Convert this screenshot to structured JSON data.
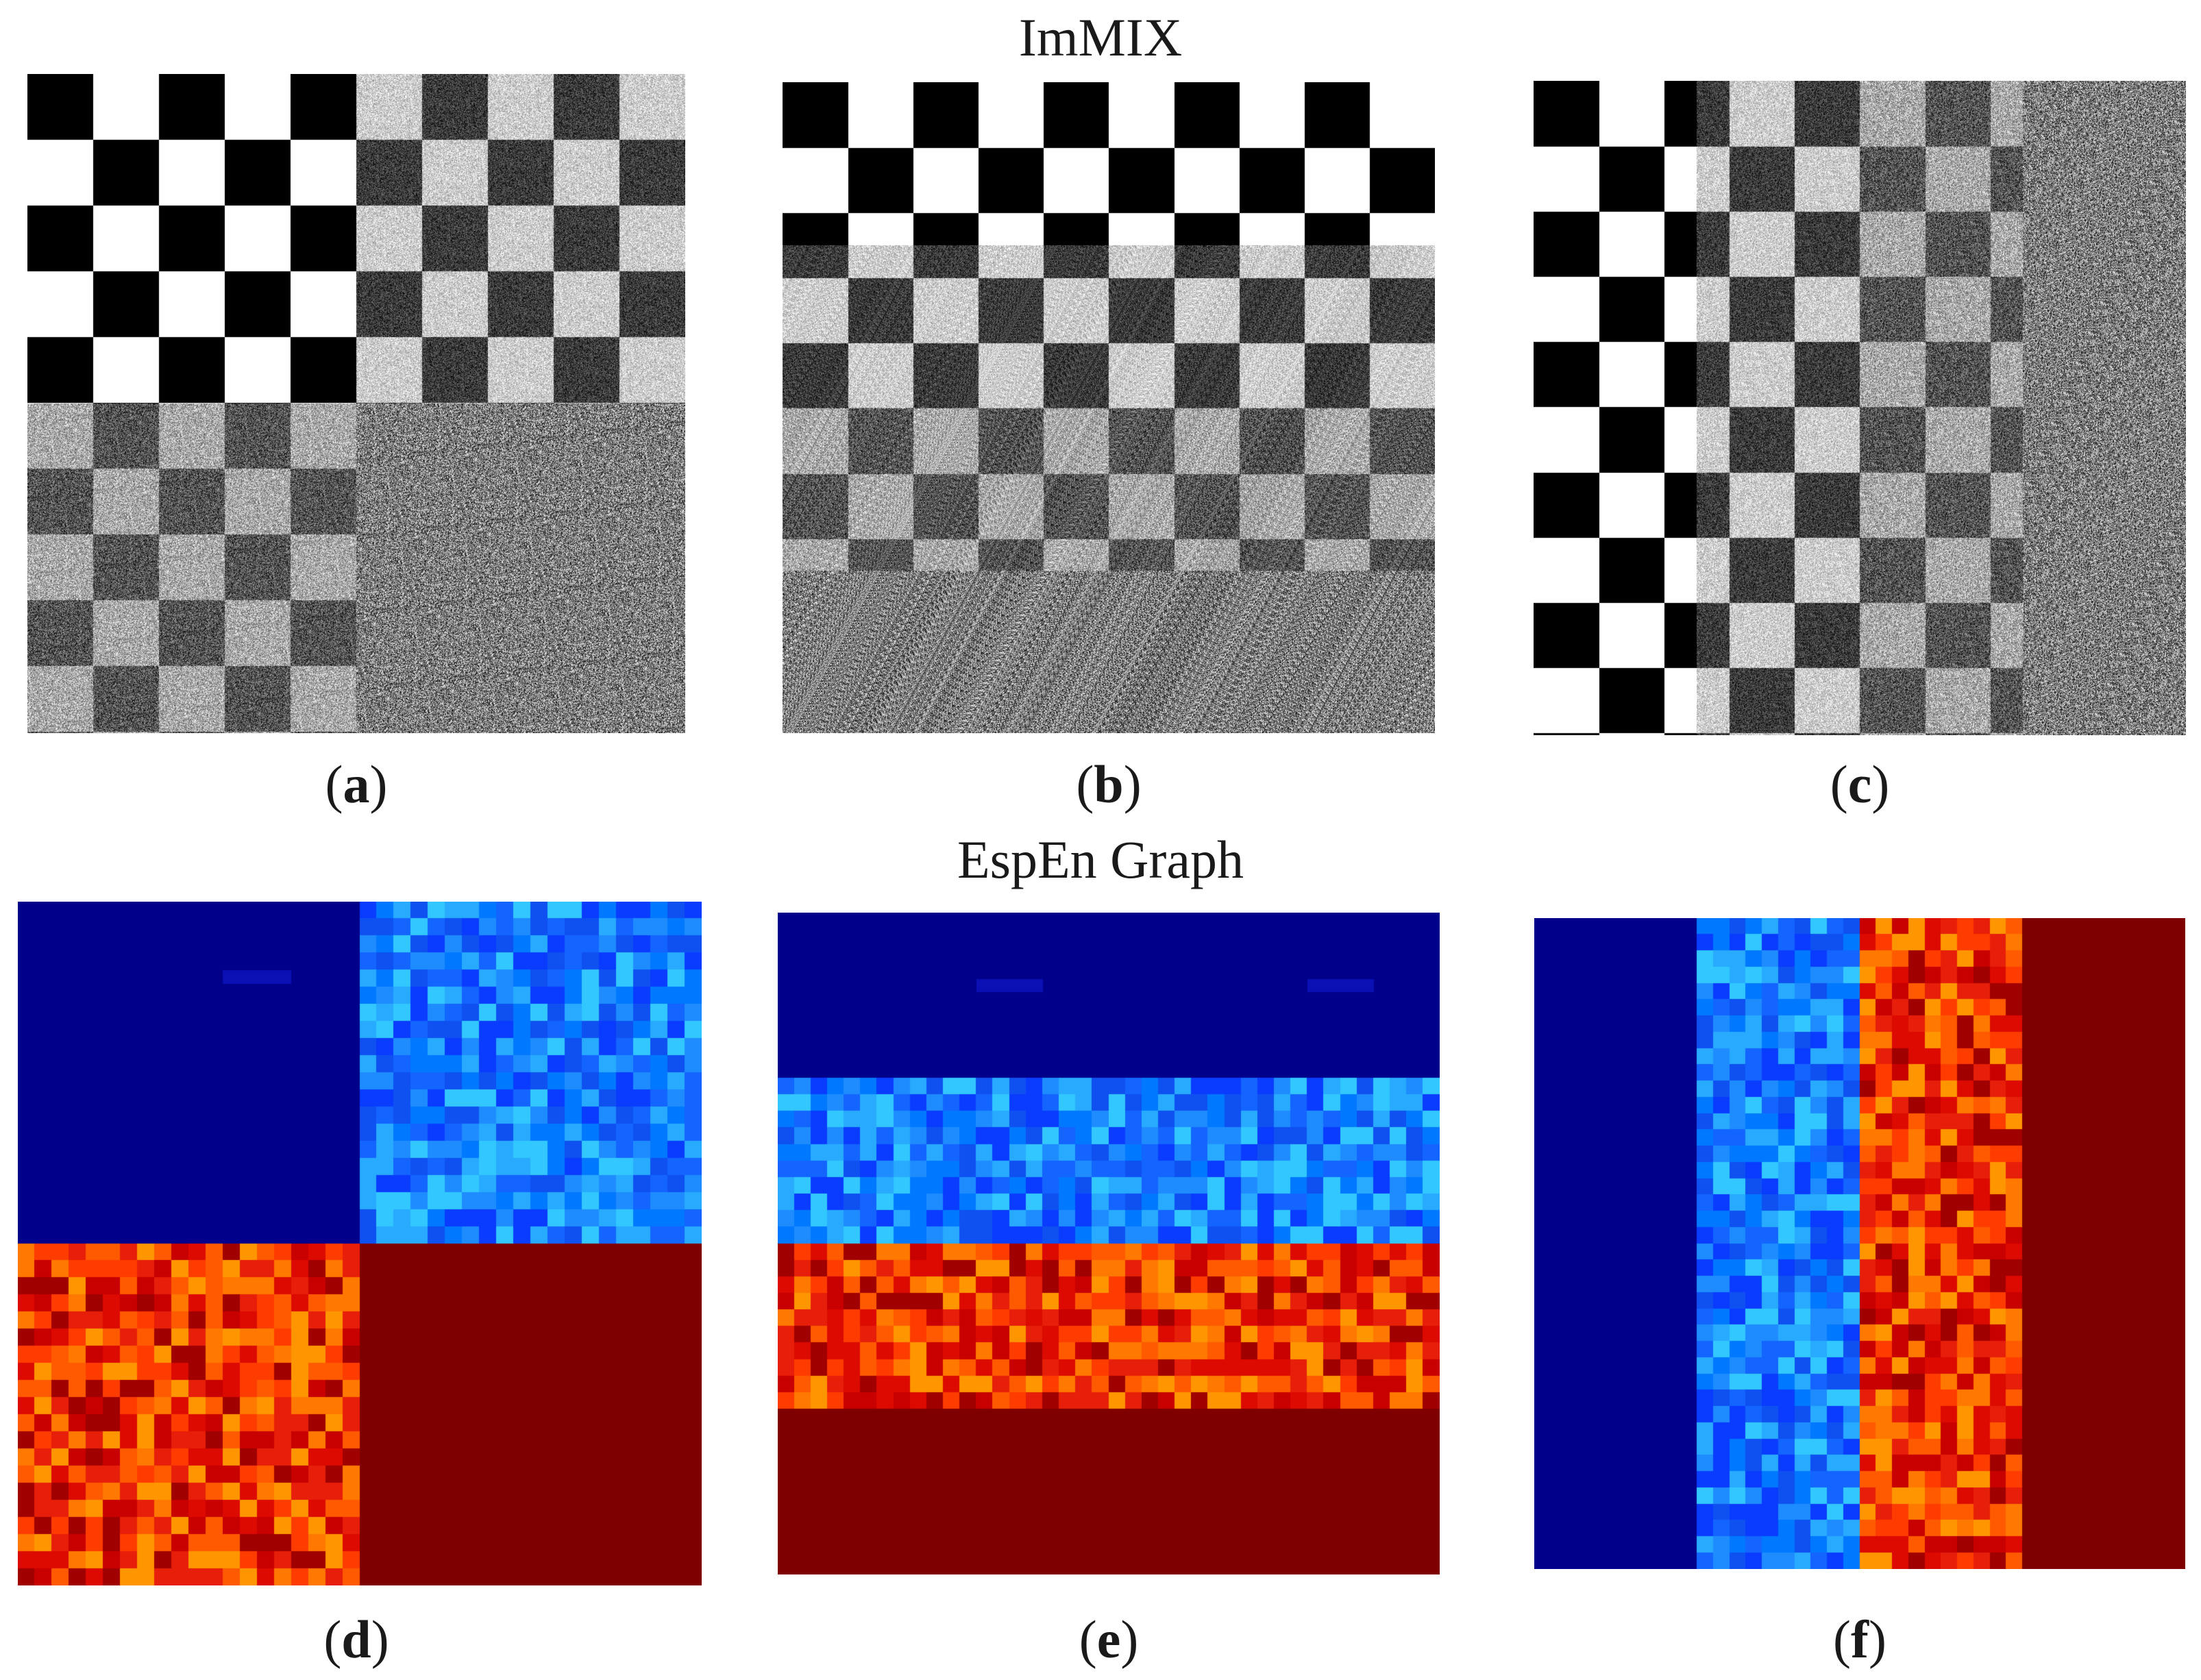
{
  "figure": {
    "top_title": "ImMIX",
    "bottom_title": "EspEn Graph",
    "panels": [
      {
        "letter": "a",
        "kind": "checker",
        "layout": "quadrants"
      },
      {
        "letter": "b",
        "kind": "checker",
        "layout": "horizontal-bands"
      },
      {
        "letter": "c",
        "kind": "checker",
        "layout": "vertical-bands"
      },
      {
        "letter": "d",
        "kind": "heatmap",
        "layout": "quadrants"
      },
      {
        "letter": "e",
        "kind": "heatmap",
        "layout": "horizontal-bands"
      },
      {
        "letter": "f",
        "kind": "heatmap",
        "layout": "vertical-bands"
      }
    ],
    "region_noise_levels": [
      "none",
      "low",
      "medium",
      "pure-noise"
    ],
    "heatmap_colormap": "jet",
    "heatmap_colors": {
      "none": "#00008b",
      "low": "#1f7fff",
      "medium": "#e8200a",
      "pure-noise": "#7f0000"
    }
  }
}
